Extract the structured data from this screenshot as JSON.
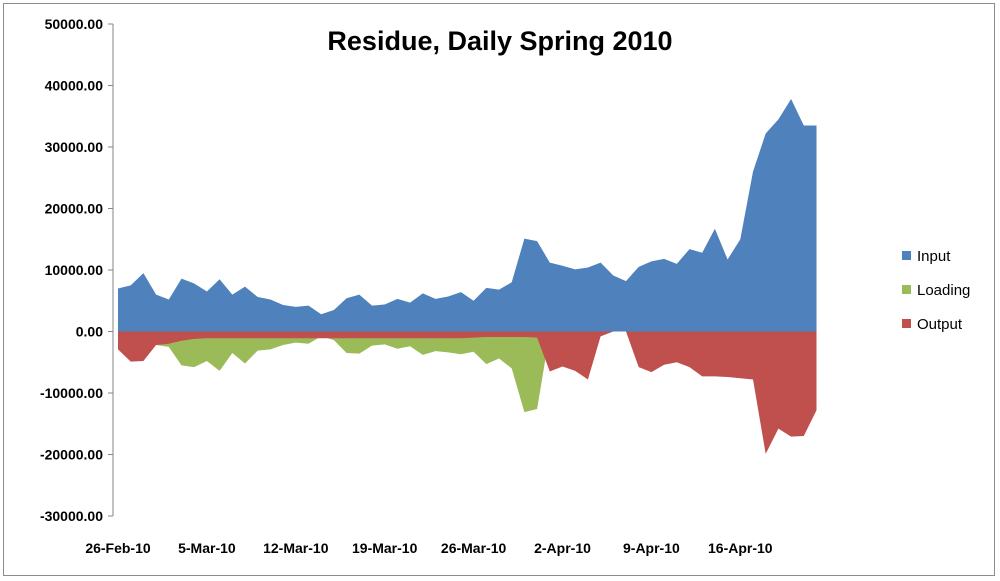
{
  "chart_data": {
    "type": "area",
    "title": "Residue, Daily Spring 2010",
    "xlabel": "",
    "ylabel": "",
    "ylim": [
      -30000,
      50000
    ],
    "yticks": [
      "50000.00",
      "40000.00",
      "30000.00",
      "20000.00",
      "10000.00",
      "0.00",
      "-10000.00",
      "-20000.00",
      "-30000.00"
    ],
    "xticks": [
      "26-Feb-10",
      "5-Mar-10",
      "12-Mar-10",
      "19-Mar-10",
      "26-Mar-10",
      "2-Apr-10",
      "9-Apr-10",
      "16-Apr-10"
    ],
    "grid": false,
    "legend_position": "right",
    "x": [
      "26-Feb-10",
      "27-Feb-10",
      "28-Feb-10",
      "1-Mar-10",
      "2-Mar-10",
      "3-Mar-10",
      "4-Mar-10",
      "5-Mar-10",
      "6-Mar-10",
      "7-Mar-10",
      "8-Mar-10",
      "9-Mar-10",
      "10-Mar-10",
      "11-Mar-10",
      "12-Mar-10",
      "13-Mar-10",
      "14-Mar-10",
      "15-Mar-10",
      "16-Mar-10",
      "17-Mar-10",
      "18-Mar-10",
      "19-Mar-10",
      "20-Mar-10",
      "21-Mar-10",
      "22-Mar-10",
      "23-Mar-10",
      "24-Mar-10",
      "25-Mar-10",
      "26-Mar-10",
      "27-Mar-10",
      "28-Mar-10",
      "29-Mar-10",
      "30-Mar-10",
      "31-Mar-10",
      "1-Apr-10",
      "2-Apr-10",
      "3-Apr-10",
      "4-Apr-10",
      "5-Apr-10",
      "6-Apr-10",
      "7-Apr-10",
      "8-Apr-10",
      "9-Apr-10",
      "10-Apr-10",
      "11-Apr-10",
      "12-Apr-10",
      "13-Apr-10",
      "14-Apr-10",
      "15-Apr-10",
      "16-Apr-10",
      "17-Apr-10",
      "18-Apr-10",
      "19-Apr-10",
      "20-Apr-10",
      "21-Apr-10",
      "22-Apr-10"
    ],
    "series": [
      {
        "name": "Input",
        "color": "#4f81bd",
        "values": [
          7000,
          7500,
          9500,
          6000,
          5200,
          8600,
          7800,
          6500,
          8500,
          6000,
          7300,
          5600,
          5200,
          4300,
          4000,
          4200,
          2800,
          3500,
          5400,
          6000,
          4200,
          4400,
          5300,
          4700,
          6200,
          5300,
          5700,
          6400,
          5000,
          7100,
          6800,
          8000,
          15100,
          14700,
          11200,
          10700,
          10100,
          10400,
          11200,
          9100,
          8200,
          10500,
          11400,
          11800,
          11000,
          13400,
          12800,
          16700,
          11700,
          15000,
          26000,
          32200,
          34500,
          37800,
          33500,
          33500
        ]
      },
      {
        "name": "Loading",
        "color": "#9bbb59",
        "values": [
          -1800,
          -2200,
          -2200,
          -2200,
          -2500,
          -5500,
          -5800,
          -4800,
          -6400,
          -3500,
          -5200,
          -3100,
          -2900,
          -2200,
          -1800,
          -2000,
          -800,
          -1400,
          -3500,
          -3600,
          -2300,
          -2100,
          -2800,
          -2400,
          -3800,
          -3200,
          -3400,
          -3700,
          -3300,
          -5300,
          -4400,
          -6000,
          -13100,
          -12600,
          -200,
          -200,
          -200,
          -200,
          -200,
          0,
          0,
          -300,
          -300,
          -900,
          -800,
          -1500,
          -300,
          -1000,
          -2400,
          -200,
          -700,
          -1000,
          -1200,
          -5200,
          -5000,
          -8500
        ]
      },
      {
        "name": "Output",
        "color": "#c0504d",
        "values": [
          -2900,
          -4900,
          -4800,
          -2200,
          -2000,
          -1500,
          -1200,
          -1100,
          -1100,
          -1100,
          -1100,
          -1100,
          -1100,
          -1100,
          -1100,
          -1100,
          -1100,
          -1100,
          -1100,
          -1100,
          -1100,
          -1100,
          -1100,
          -1100,
          -1100,
          -1100,
          -1100,
          -1100,
          -1000,
          -900,
          -900,
          -900,
          -900,
          -1000,
          -6500,
          -5700,
          -6400,
          -7800,
          -800,
          0,
          0,
          -5800,
          -6600,
          -5400,
          -5000,
          -5800,
          -7300,
          -7300,
          -7400,
          -7600,
          -7800,
          -19900,
          -15800,
          -17100,
          -17000,
          -12800
        ]
      }
    ]
  }
}
